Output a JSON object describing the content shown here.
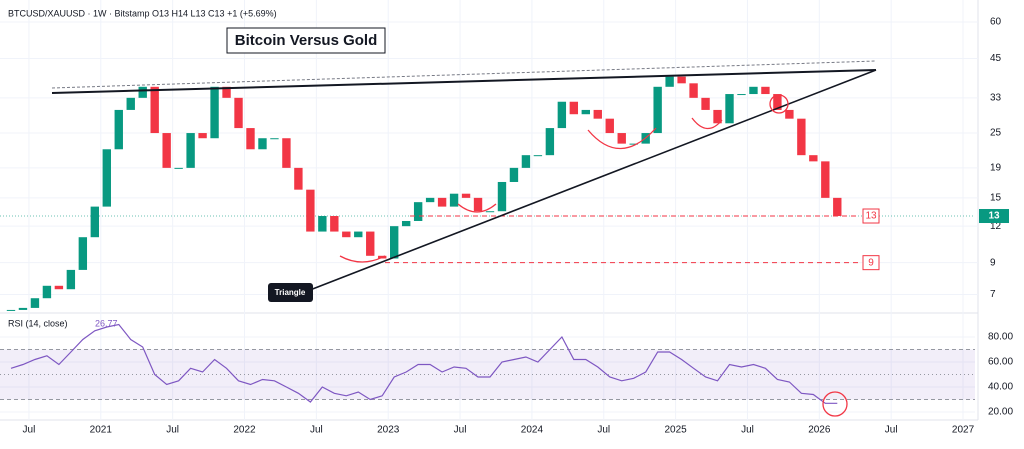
{
  "chart_data": {
    "type": "candlestick",
    "header": "BTCUSD/XAUUSD · 1W · Bitstamp  O13  H14  L13  C13  +1 (+5.69%)",
    "title": "Bitcoin Versus Gold",
    "annotation": "Triangle",
    "log_scale": true,
    "x": [
      "2020-05",
      "2020-06",
      "2020-07",
      "2020-08",
      "2020-09",
      "2020-10",
      "2020-11",
      "2020-12",
      "2021-01",
      "2021-02",
      "2021-03",
      "2021-04",
      "2021-05",
      "2021-06",
      "2021-07",
      "2021-08",
      "2021-09",
      "2021-10",
      "2021-11",
      "2021-12",
      "2022-01",
      "2022-02",
      "2022-03",
      "2022-04",
      "2022-05",
      "2022-06",
      "2022-07",
      "2022-08",
      "2022-09",
      "2022-10",
      "2022-11",
      "2022-12",
      "2023-01",
      "2023-02",
      "2023-03",
      "2023-04",
      "2023-05",
      "2023-06",
      "2023-07",
      "2023-08",
      "2023-09",
      "2023-10",
      "2023-11",
      "2023-12",
      "2024-01",
      "2024-02",
      "2024-03",
      "2024-04",
      "2024-05",
      "2024-06",
      "2024-07",
      "2024-08",
      "2024-09",
      "2024-10",
      "2024-11",
      "2024-12",
      "2025-01",
      "2025-02",
      "2025-03",
      "2025-04",
      "2025-05",
      "2025-06",
      "2025-07",
      "2025-08",
      "2025-09",
      "2025-10",
      "2025-11",
      "2025-12",
      "2026-01",
      "2026-02"
    ],
    "series": [
      {
        "name": "BTCUSD/XAUUSD",
        "up_color": "#089981",
        "down_color": "#f23645",
        "values": [
          6.2,
          6.3,
          6.8,
          7.5,
          7.3,
          8.5,
          11,
          14,
          22,
          30,
          33,
          36,
          25,
          19,
          19,
          25,
          24,
          36,
          33,
          26,
          22,
          24,
          24,
          19,
          16,
          11.5,
          13,
          11.5,
          11,
          11.5,
          9.5,
          9.3,
          12,
          12.5,
          14.5,
          15,
          14,
          15.5,
          15,
          13.5,
          13.5,
          17,
          19,
          21,
          21,
          26,
          32,
          29,
          30,
          28,
          25,
          23,
          23,
          25,
          36,
          39,
          37,
          33,
          30,
          27,
          34,
          34,
          36,
          34,
          30,
          28,
          21,
          20,
          15,
          13
        ]
      }
    ],
    "levels": [
      13,
      9
    ],
    "level_color": "#f23645",
    "last_price": 13,
    "xlim": [
      "2020-05",
      "2027-02"
    ],
    "xticks": [
      {
        "value": "2020-07",
        "label": "Jul"
      },
      {
        "value": "2021-01",
        "label": "2021"
      },
      {
        "value": "2021-07",
        "label": "Jul"
      },
      {
        "value": "2022-01",
        "label": "2022"
      },
      {
        "value": "2022-07",
        "label": "Jul"
      },
      {
        "value": "2023-01",
        "label": "2023"
      },
      {
        "value": "2023-07",
        "label": "Jul"
      },
      {
        "value": "2024-01",
        "label": "2024"
      },
      {
        "value": "2024-07",
        "label": "Jul"
      },
      {
        "value": "2025-01",
        "label": "2025"
      },
      {
        "value": "2025-07",
        "label": "Jul"
      },
      {
        "value": "2026-01",
        "label": "2026"
      },
      {
        "value": "2026-07",
        "label": "Jul"
      },
      {
        "value": "2027-01",
        "label": "2027"
      }
    ],
    "ylim": [
      6.1,
      68.6
    ],
    "yticks": [
      7,
      9,
      12,
      15,
      19,
      25,
      33,
      45,
      60
    ],
    "rsi": {
      "label": "RSI (14, close)",
      "last_label": "26.77",
      "color": "#7e57c2",
      "values": [
        55,
        58,
        62,
        65,
        58,
        68,
        78,
        85,
        88,
        90,
        78,
        72,
        50,
        42,
        45,
        55,
        52,
        62,
        55,
        45,
        42,
        46,
        45,
        40,
        35,
        28,
        40,
        35,
        33,
        36,
        30,
        33,
        48,
        52,
        58,
        58,
        52,
        56,
        55,
        48,
        48,
        60,
        62,
        64,
        60,
        70,
        80,
        62,
        62,
        56,
        48,
        45,
        47,
        52,
        68,
        68,
        62,
        55,
        48,
        45,
        58,
        56,
        58,
        55,
        46,
        44,
        35,
        34,
        27,
        27
      ],
      "ylim": [
        13.6,
        99.2
      ],
      "yticks": [
        {
          "value": 20,
          "label": "20.00"
        },
        {
          "value": 40,
          "label": "40.00"
        },
        {
          "value": 60,
          "label": "60.00"
        },
        {
          "value": 80,
          "label": "80.00"
        }
      ],
      "band": [
        30,
        70
      ],
      "mid": 50
    }
  }
}
